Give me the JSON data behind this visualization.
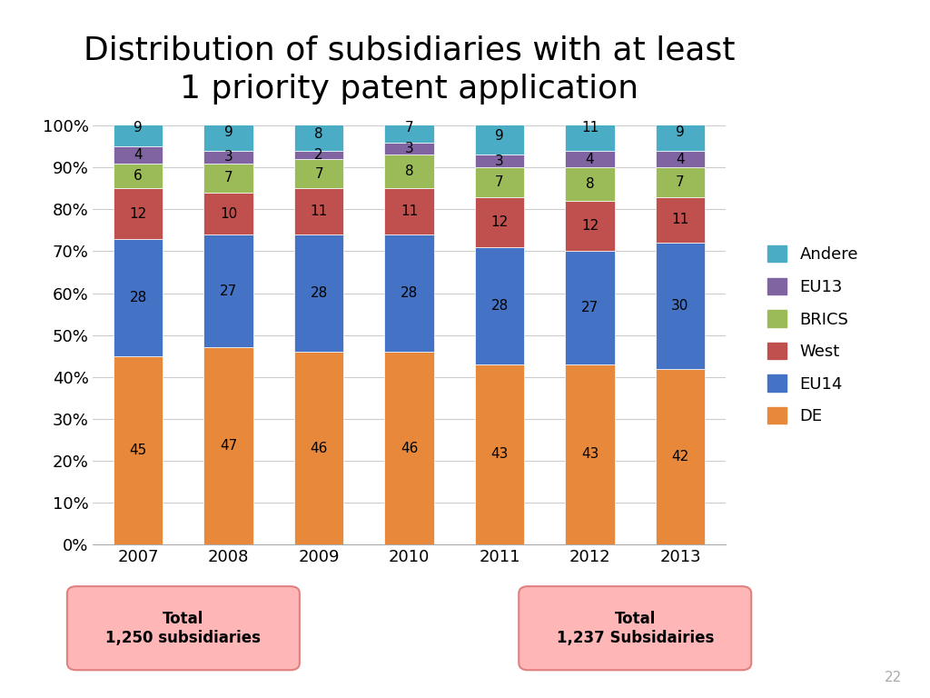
{
  "title": "Distribution of subsidiaries with at least\n1 priority patent application",
  "years": [
    "2007",
    "2008",
    "2009",
    "2010",
    "2011",
    "2012",
    "2013"
  ],
  "categories": [
    "DE",
    "EU14",
    "West",
    "BRICS",
    "EU13",
    "Andere"
  ],
  "colors": {
    "DE": "#E8883A",
    "EU14": "#4472C4",
    "West": "#C0504D",
    "BRICS": "#9BBB59",
    "EU13": "#8064A2",
    "Andere": "#4BACC6"
  },
  "values": {
    "DE": [
      45,
      47,
      46,
      46,
      43,
      43,
      42
    ],
    "EU14": [
      28,
      27,
      28,
      28,
      28,
      27,
      30
    ],
    "West": [
      12,
      10,
      11,
      11,
      12,
      12,
      11
    ],
    "BRICS": [
      6,
      7,
      7,
      8,
      7,
      8,
      7
    ],
    "EU13": [
      4,
      3,
      2,
      3,
      3,
      4,
      4
    ],
    "Andere": [
      9,
      9,
      8,
      7,
      9,
      11,
      9
    ]
  },
  "legend_order": [
    "Andere",
    "EU13",
    "BRICS",
    "West",
    "EU14",
    "DE"
  ],
  "box1_text": "Total\n1,250 subsidiaries",
  "box2_text": "Total\n1,237 Subsidairies",
  "page_number": "22",
  "title_fontsize": 26,
  "tick_fontsize": 13,
  "bar_label_fontsize": 11,
  "legend_fontsize": 13
}
